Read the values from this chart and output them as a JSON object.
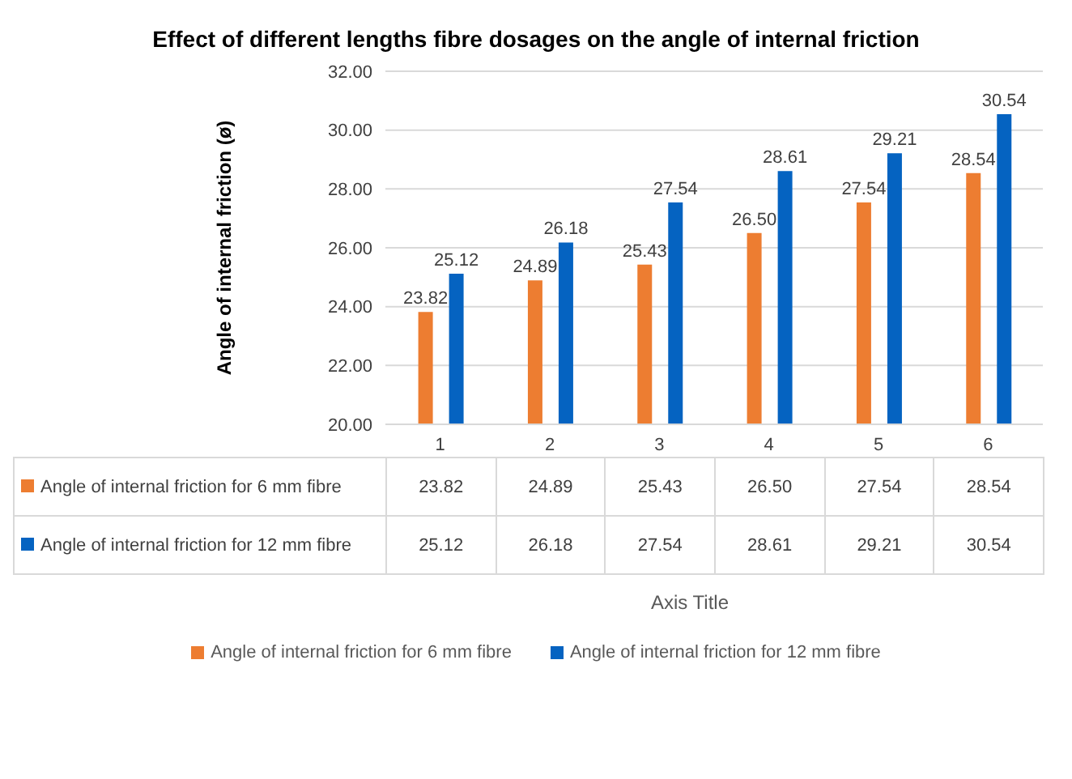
{
  "chart_data": {
    "type": "bar",
    "title": "Effect of different lengths fibre dosages on the angle of internal friction",
    "annotations": [
      "Axis Title"
    ],
    "ylabel": "Angle of internal friction (ø)",
    "categories": [
      "1",
      "2",
      "3",
      "4",
      "5",
      "6"
    ],
    "series": [
      {
        "name": "Angle of internal friction for 6 mm fibre",
        "color": "#ed7d31",
        "values": [
          23.82,
          24.89,
          25.43,
          26.5,
          27.54,
          28.54
        ],
        "value_labels": [
          "23.82",
          "24.89",
          "25.43",
          "26.50",
          "27.54",
          "28.54"
        ]
      },
      {
        "name": "Angle of internal friction for 12 mm fibre",
        "color": "#0563c1",
        "values": [
          25.12,
          26.18,
          27.54,
          28.61,
          29.21,
          30.54
        ],
        "value_labels": [
          "25.12",
          "26.18",
          "27.54",
          "28.61",
          "29.21",
          "30.54"
        ]
      }
    ],
    "ylim": [
      20,
      32
    ],
    "yticks": [
      {
        "value": 20,
        "label": "20.00"
      },
      {
        "value": 22,
        "label": "22.00"
      },
      {
        "value": 24,
        "label": "24.00"
      },
      {
        "value": 26,
        "label": "26.00"
      },
      {
        "value": 28,
        "label": "28.00"
      },
      {
        "value": 30,
        "label": "30.00"
      },
      {
        "value": 32,
        "label": "32.00"
      }
    ],
    "grid": "y",
    "legend": "bottom"
  }
}
